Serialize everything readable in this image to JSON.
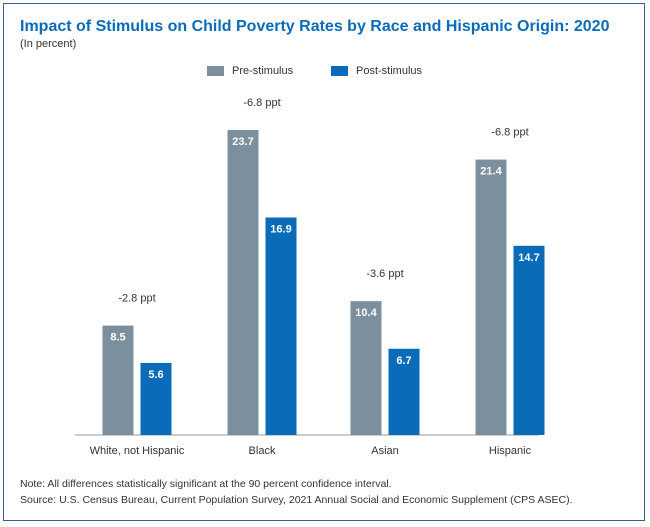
{
  "chart_data": {
    "type": "bar",
    "title": "Impact of Stimulus on Child Poverty Rates by Race and Hispanic Origin: 2020",
    "subtitle": "(In percent)",
    "xlabel": "",
    "ylabel": "",
    "ylim": [
      0,
      25
    ],
    "grid": false,
    "legend_position": "top-center",
    "categories": [
      "White, not Hispanic",
      "Black",
      "Asian",
      "Hispanic"
    ],
    "series": [
      {
        "name": "Pre-stimulus",
        "color": "#7b8f9c",
        "values": [
          8.5,
          23.7,
          10.4,
          21.4
        ]
      },
      {
        "name": "Post-stimulus",
        "color": "#0a6bb8",
        "values": [
          5.6,
          16.9,
          6.7,
          14.7
        ]
      }
    ],
    "value_labels": {
      "pre": [
        "8.5",
        "23.7",
        "10.4",
        "21.4"
      ],
      "post": [
        "5.6",
        "16.9",
        "6.7",
        "14.7"
      ]
    },
    "annotations": [
      "-2.8 ppt",
      "-6.8 ppt",
      "-3.6 ppt",
      "-6.8 ppt"
    ]
  },
  "legend": {
    "pre_label": "Pre-stimulus",
    "post_label": "Post-stimulus"
  },
  "footer": {
    "note": "Note: All differences statistically significant at the 90 percent confidence interval.",
    "source": "Source: U.S. Census Bureau, Current Population Survey, 2021 Annual Social and Economic Supplement  (CPS ASEC)."
  }
}
